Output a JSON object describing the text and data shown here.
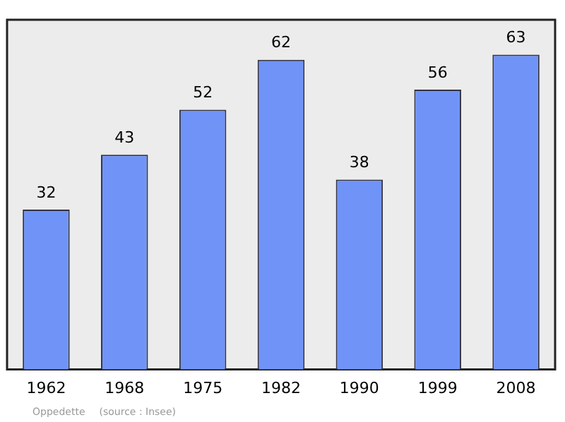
{
  "chart_data": {
    "type": "bar",
    "categories": [
      "1962",
      "1968",
      "1975",
      "1982",
      "1990",
      "1999",
      "2008"
    ],
    "values": [
      32,
      43,
      52,
      62,
      38,
      56,
      63
    ],
    "color": "#7093f7",
    "data_labels": true,
    "grid": false,
    "legend": false,
    "annotations": [
      "Oppedette",
      "(source : Insee)"
    ]
  }
}
